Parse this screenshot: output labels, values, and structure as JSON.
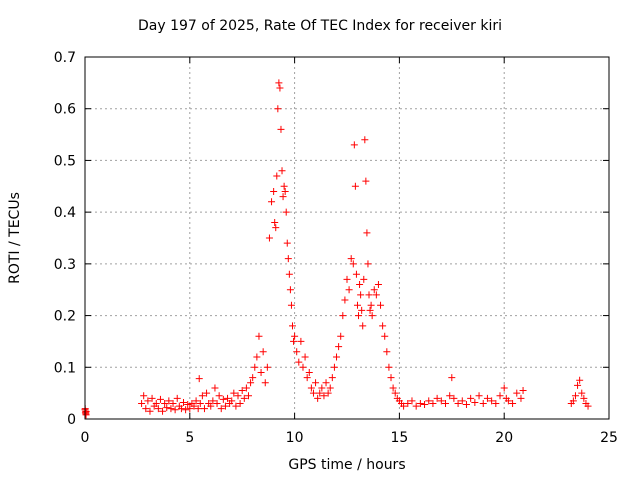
{
  "chart_data": {
    "type": "scatter",
    "title": "Day 197 of 2025, Rate Of TEC Index for receiver kiri",
    "xlabel": "GPS time / hours",
    "ylabel": "ROTI / TECUs",
    "xlim": [
      0,
      25
    ],
    "ylim": [
      0,
      0.7
    ],
    "xticks": [
      0,
      5,
      10,
      15,
      20,
      25
    ],
    "yticks": [
      0,
      0.1,
      0.2,
      0.3,
      0.4,
      0.5,
      0.6,
      0.7
    ],
    "ytick_labels": [
      "0",
      "0.1",
      "0.2",
      "0.3",
      "0.4",
      "0.5",
      "0.6",
      "0.7"
    ],
    "xtick_labels": [
      "0",
      "5",
      "10",
      "15",
      "20",
      "25"
    ],
    "grid": true,
    "marker": "+",
    "color": "#ff0000",
    "series": [
      {
        "x": [
          0.0,
          0.02,
          0.05,
          0.03,
          0.01,
          0.04,
          0.06,
          2.7,
          2.8,
          2.9,
          3.0,
          3.1,
          3.2,
          3.3,
          3.4,
          3.5,
          3.6,
          3.7,
          3.8,
          3.9,
          4.0,
          4.1,
          4.2,
          4.3,
          4.4,
          4.5,
          4.6,
          4.7,
          4.8,
          4.9,
          5.0,
          5.1,
          5.2,
          5.3,
          5.4,
          5.45,
          5.5,
          5.6,
          5.7,
          5.8,
          5.9,
          6.0,
          6.1,
          6.2,
          6.3,
          6.4,
          6.5,
          6.6,
          6.7,
          6.8,
          6.9,
          7.0,
          7.1,
          7.2,
          7.3,
          7.4,
          7.5,
          7.6,
          7.7,
          7.8,
          7.9,
          8.0,
          8.1,
          8.2,
          8.3,
          8.4,
          8.5,
          8.6,
          8.7,
          8.8,
          8.9,
          9.0,
          9.05,
          9.1,
          9.15,
          9.2,
          9.25,
          9.3,
          9.35,
          9.4,
          9.45,
          9.5,
          9.55,
          9.6,
          9.65,
          9.7,
          9.75,
          9.8,
          9.85,
          9.9,
          9.95,
          10.0,
          10.1,
          10.2,
          10.3,
          10.4,
          10.5,
          10.6,
          10.7,
          10.8,
          10.9,
          11.0,
          11.1,
          11.2,
          11.3,
          11.4,
          11.5,
          11.6,
          11.7,
          11.8,
          11.9,
          12.0,
          12.1,
          12.2,
          12.3,
          12.4,
          12.5,
          12.6,
          12.7,
          12.8,
          12.85,
          12.9,
          12.95,
          13.0,
          13.05,
          13.1,
          13.15,
          13.2,
          13.25,
          13.3,
          13.35,
          13.4,
          13.45,
          13.5,
          13.55,
          13.6,
          13.65,
          13.7,
          13.8,
          13.9,
          14.0,
          14.1,
          14.2,
          14.3,
          14.4,
          14.5,
          14.6,
          14.7,
          14.8,
          14.9,
          15.0,
          15.1,
          15.2,
          15.4,
          15.6,
          15.8,
          16.0,
          16.2,
          16.4,
          16.6,
          16.8,
          17.0,
          17.2,
          17.4,
          17.5,
          17.6,
          17.8,
          18.0,
          18.2,
          18.4,
          18.6,
          18.8,
          19.0,
          19.2,
          19.4,
          19.6,
          19.8,
          20.0,
          20.1,
          20.2,
          20.4,
          20.6,
          20.8,
          20.9,
          23.2,
          23.3,
          23.4,
          23.5,
          23.6,
          23.7,
          23.8,
          23.9,
          24.0
        ],
        "y": [
          0.018,
          0.012,
          0.008,
          0.015,
          0.02,
          0.01,
          0.014,
          0.03,
          0.045,
          0.02,
          0.035,
          0.015,
          0.04,
          0.025,
          0.03,
          0.02,
          0.038,
          0.015,
          0.03,
          0.022,
          0.035,
          0.02,
          0.03,
          0.018,
          0.04,
          0.025,
          0.02,
          0.032,
          0.018,
          0.028,
          0.02,
          0.03,
          0.025,
          0.035,
          0.02,
          0.078,
          0.03,
          0.045,
          0.02,
          0.05,
          0.03,
          0.025,
          0.035,
          0.06,
          0.03,
          0.045,
          0.02,
          0.038,
          0.025,
          0.04,
          0.03,
          0.035,
          0.05,
          0.025,
          0.045,
          0.03,
          0.055,
          0.04,
          0.06,
          0.045,
          0.07,
          0.08,
          0.1,
          0.12,
          0.16,
          0.09,
          0.13,
          0.07,
          0.1,
          0.35,
          0.42,
          0.44,
          0.38,
          0.37,
          0.47,
          0.6,
          0.65,
          0.64,
          0.56,
          0.48,
          0.43,
          0.45,
          0.44,
          0.4,
          0.34,
          0.31,
          0.28,
          0.25,
          0.22,
          0.18,
          0.15,
          0.16,
          0.13,
          0.11,
          0.15,
          0.1,
          0.12,
          0.08,
          0.09,
          0.06,
          0.05,
          0.07,
          0.04,
          0.05,
          0.06,
          0.045,
          0.07,
          0.05,
          0.06,
          0.08,
          0.1,
          0.12,
          0.14,
          0.16,
          0.2,
          0.23,
          0.27,
          0.25,
          0.31,
          0.3,
          0.53,
          0.45,
          0.28,
          0.22,
          0.2,
          0.26,
          0.24,
          0.21,
          0.18,
          0.27,
          0.54,
          0.46,
          0.36,
          0.3,
          0.24,
          0.21,
          0.22,
          0.2,
          0.25,
          0.24,
          0.26,
          0.22,
          0.18,
          0.16,
          0.13,
          0.1,
          0.08,
          0.06,
          0.05,
          0.04,
          0.035,
          0.03,
          0.025,
          0.03,
          0.035,
          0.025,
          0.03,
          0.028,
          0.035,
          0.03,
          0.04,
          0.035,
          0.03,
          0.045,
          0.08,
          0.04,
          0.03,
          0.035,
          0.028,
          0.04,
          0.032,
          0.045,
          0.03,
          0.04,
          0.035,
          0.03,
          0.045,
          0.06,
          0.04,
          0.035,
          0.03,
          0.05,
          0.04,
          0.055,
          0.03,
          0.035,
          0.045,
          0.065,
          0.075,
          0.05,
          0.04,
          0.03,
          0.025
        ]
      }
    ]
  }
}
